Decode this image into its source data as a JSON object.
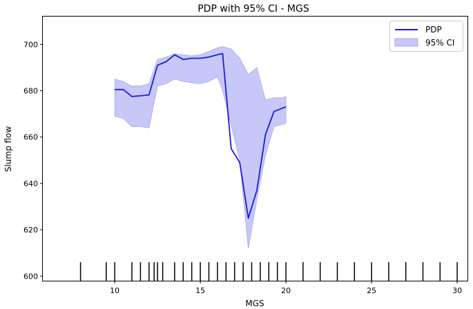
{
  "chart_data": {
    "type": "line",
    "title": "PDP with 95% CI - MGS",
    "xlabel": "MGS",
    "ylabel": "Slump flow",
    "xlim": [
      5.8,
      30.6
    ],
    "ylim": [
      598,
      712
    ],
    "xticks": [
      10,
      15,
      20,
      25,
      30
    ],
    "yticks": [
      600,
      620,
      640,
      660,
      680,
      700
    ],
    "grid": false,
    "legend_position": "top-right",
    "colors": {
      "pdp_line": "#1a1adf",
      "ci_fill": "#c8c8f8",
      "ci_edge": "#a8a8ee",
      "rug": "#000000",
      "axis": "#000000"
    },
    "series": [
      {
        "name": "PDP",
        "x": [
          10.0,
          10.5,
          11.0,
          11.5,
          12.0,
          12.5,
          13.0,
          13.5,
          14.0,
          14.5,
          15.0,
          15.5,
          16.0,
          16.3,
          16.8,
          17.3,
          17.8,
          18.3,
          18.8,
          19.3,
          19.8,
          20.0
        ],
        "values": [
          680.5,
          680.5,
          677.5,
          677.8,
          678.2,
          691.0,
          692.5,
          695.5,
          693.5,
          694.0,
          694.0,
          694.5,
          695.5,
          696.0,
          655.0,
          649.0,
          625.0,
          637.0,
          661.0,
          671.0,
          672.5,
          673.0
        ]
      },
      {
        "name": "95% CI",
        "x": [
          10.0,
          10.5,
          11.0,
          11.5,
          12.0,
          12.5,
          13.0,
          13.5,
          14.0,
          14.5,
          15.0,
          15.5,
          16.0,
          16.3,
          16.8,
          17.3,
          17.8,
          18.3,
          18.8,
          19.3,
          19.8,
          20.0
        ],
        "upper": [
          685.0,
          684.0,
          682.0,
          682.0,
          683.0,
          693.5,
          694.5,
          696.0,
          695.5,
          695.0,
          695.5,
          697.0,
          698.5,
          699.0,
          698.0,
          694.0,
          687.0,
          690.0,
          676.0,
          677.0,
          677.0,
          677.5
        ],
        "lower": [
          669.0,
          668.0,
          664.5,
          664.5,
          664.0,
          682.0,
          683.0,
          685.0,
          684.0,
          683.5,
          683.0,
          684.0,
          686.0,
          680.0,
          665.0,
          650.0,
          612.0,
          633.0,
          652.0,
          664.5,
          665.5,
          666.0
        ]
      }
    ],
    "rug_x": [
      8.0,
      9.5,
      10.0,
      11.0,
      11.5,
      12.0,
      12.3,
      12.5,
      12.8,
      13.5,
      14.0,
      14.5,
      15.0,
      15.5,
      16.0,
      16.5,
      17.0,
      17.5,
      18.0,
      18.5,
      19.0,
      19.5,
      20.0,
      21.0,
      22.0,
      23.0,
      24.0,
      25.0,
      26.0,
      27.0,
      28.0,
      29.0,
      30.0
    ],
    "rug_height": [
      8.0,
      8.0,
      8.0,
      8.0,
      8.0,
      8.0,
      8.0,
      8.0,
      8.0,
      8.0,
      8.0,
      8.0,
      8.0,
      8.0,
      8.0,
      8.0,
      8.0,
      8.0,
      8.0,
      8.0,
      8.0,
      8.0,
      8.0,
      8.0,
      8.0,
      8.0,
      8.0,
      8.0,
      8.0,
      8.0,
      8.0,
      8.0,
      8.0
    ]
  }
}
